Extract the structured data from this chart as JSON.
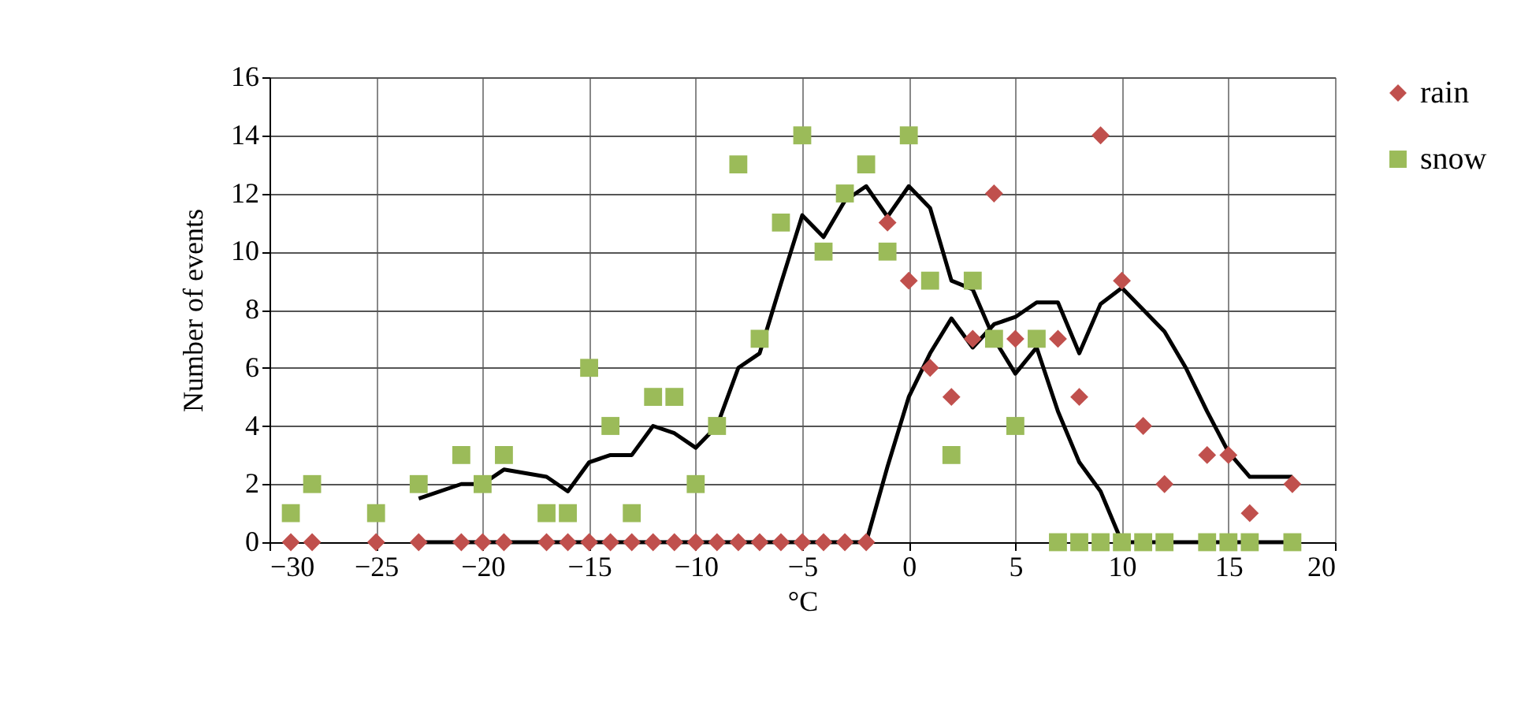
{
  "chart_data": {
    "type": "scatter",
    "xlabel": "°C",
    "ylabel": "Number of events",
    "xlim": [
      -30,
      20
    ],
    "xticks": [
      -30,
      -25,
      -20,
      -15,
      -10,
      -5,
      0,
      5,
      10,
      15,
      20
    ],
    "ylim": [
      0,
      16
    ],
    "yticks": [
      0,
      2,
      4,
      6,
      8,
      10,
      12,
      14,
      16
    ],
    "grid": true,
    "legend": "right",
    "series": [
      {
        "name": "rain",
        "marker": "diamond",
        "color": "#c0504d",
        "x": [
          -29,
          -28,
          -25,
          -23,
          -21,
          -20,
          -19,
          -17,
          -16,
          -15,
          -14,
          -13,
          -12,
          -11,
          -10,
          -9,
          -8,
          -7,
          -6,
          -5,
          -4,
          -3,
          -2,
          -1,
          0,
          1,
          2,
          3,
          4,
          5,
          7,
          8,
          9,
          10,
          11,
          12,
          14,
          15,
          16,
          18
        ],
        "values": [
          0,
          0,
          0,
          0,
          0,
          0,
          0,
          0,
          0,
          0,
          0,
          0,
          0,
          0,
          0,
          0,
          0,
          0,
          0,
          0,
          0,
          0,
          0,
          11,
          9,
          6,
          5,
          7,
          12,
          7,
          7,
          5,
          14,
          9,
          4,
          2,
          3,
          3,
          1,
          2
        ]
      },
      {
        "name": "snow",
        "marker": "square",
        "color": "#9bbb59",
        "x": [
          -29,
          -28,
          -25,
          -23,
          -21,
          -20,
          -19,
          -17,
          -16,
          -15,
          -14,
          -13,
          -12,
          -11,
          -10,
          -9,
          -8,
          -7,
          -6,
          -5,
          -4,
          -3,
          -2,
          -1,
          0,
          1,
          2,
          3,
          4,
          5,
          6,
          7,
          8,
          9,
          10,
          11,
          12,
          14,
          15,
          16,
          18
        ],
        "values": [
          1,
          2,
          1,
          2,
          3,
          2,
          3,
          1,
          1,
          6,
          4,
          1,
          5,
          5,
          2,
          4,
          13,
          7,
          11,
          14,
          10,
          12,
          13,
          10,
          14,
          9,
          3,
          9,
          7,
          4,
          7,
          0,
          0,
          0,
          0,
          0,
          0,
          0,
          0,
          0,
          0
        ]
      },
      {
        "type": "line",
        "marker": "none",
        "line_style": "solid",
        "color": "#000000",
        "x": [
          -23,
          -21,
          -20,
          -19,
          -17,
          -16,
          -15,
          -14,
          -13,
          -12,
          -11,
          -10,
          -9,
          -8,
          -7,
          -6,
          -5,
          -4,
          -3,
          -2,
          -1,
          0,
          1,
          2,
          3,
          4,
          5,
          6,
          7,
          8,
          9,
          10,
          11,
          12,
          13,
          14,
          15,
          16,
          18
        ],
        "values": [
          1.5,
          2,
          2,
          2.5,
          2.25,
          1.75,
          2.75,
          3,
          3,
          4,
          3.75,
          3.25,
          4,
          6,
          6.5,
          8.9,
          11.25,
          10.5,
          11.75,
          12.25,
          11.2,
          12.25,
          11.5,
          9,
          8.7,
          7,
          5.8,
          6.7,
          4.5,
          2.75,
          1.75,
          0,
          0,
          0,
          0,
          0,
          0,
          0,
          0
        ]
      },
      {
        "type": "line",
        "marker": "none",
        "line_style": "solid",
        "color": "#000000",
        "x": [
          -23,
          -2,
          -1,
          0,
          1,
          2,
          3,
          4,
          5,
          6,
          7,
          8,
          9,
          10,
          11,
          12,
          13,
          14,
          15,
          16,
          18
        ],
        "values": [
          0,
          0,
          2.6,
          5,
          6.5,
          7.7,
          6.7,
          7.5,
          7.75,
          8.25,
          8.25,
          6.5,
          8.2,
          8.75,
          8,
          7.25,
          6,
          4.5,
          3.1,
          2.25,
          2.25
        ]
      }
    ]
  }
}
